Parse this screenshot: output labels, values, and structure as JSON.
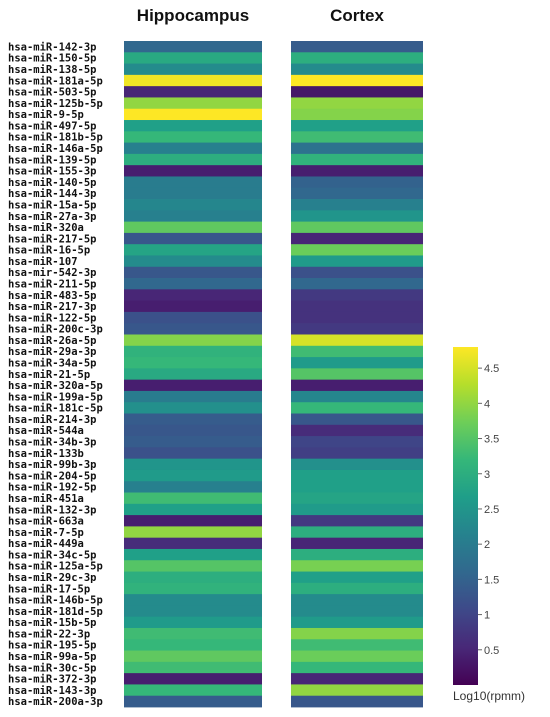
{
  "chart_data": {
    "type": "heatmap",
    "columns": [
      "Hippocampus",
      "Cortex"
    ],
    "rows": [
      "hsa-miR-142-3p",
      "hsa-miR-150-5p",
      "hsa-miR-138-5p",
      "hsa-miR-181a-5p",
      "hsa-miR-503-5p",
      "hsa-miR-125b-5p",
      "hsa-miR-9-5p",
      "hsa-miR-497-5p",
      "hsa-miR-181b-5p",
      "hsa-miR-146a-5p",
      "hsa-miR-139-5p",
      "hsa-miR-155-3p",
      "hsa-miR-140-5p",
      "hsa-miR-144-3p",
      "hsa-miR-15a-5p",
      "hsa-miR-27a-3p",
      "hsa-miR-320a",
      "hsa-miR-217-5p",
      "hsa-miR-16-5p",
      "hsa-miR-107",
      "hsa-mir-542-3p",
      "hsa-miR-211-5p",
      "hsa-miR-483-5p",
      "hsa-miR-217-3p",
      "hsa-miR-122-5p",
      "hsa-miR-200c-3p",
      "hsa-miR-26a-5p",
      "hsa-miR-29a-3p",
      "hsa-miR-34a-5p",
      "hsa-miR-21-5p",
      "hsa-miR-320a-5p",
      "hsa-miR-199a-5p",
      "hsa-miR-181c-5p",
      "hsa-miR-214-3p",
      "hsa-miR-544a",
      "hsa-miR-34b-3p",
      "hsa-miR-133b",
      "hsa-miR-99b-3p",
      "hsa-miR-204-5p",
      "hsa-miR-192-5p",
      "hsa-miR-451a",
      "hsa-miR-132-3p",
      "hsa-miR-663a",
      "hsa-miR-7-5p",
      "hsa-miR-449a",
      "hsa-miR-34c-5p",
      "hsa-miR-125a-5p",
      "hsa-miR-29c-3p",
      "hsa-miR-17-5p",
      "hsa-miR-146b-5p",
      "hsa-miR-181d-5p",
      "hsa-miR-15b-5p",
      "hsa-miR-22-3p",
      "hsa-miR-195-5p",
      "hsa-miR-99a-5p",
      "hsa-miR-30c-5p",
      "hsa-miR-372-3p",
      "hsa-miR-143-3p",
      "hsa-miR-200a-3p"
    ],
    "values": [
      [
        1.6,
        1.4
      ],
      [
        2.9,
        3.0
      ],
      [
        2.3,
        2.3
      ],
      [
        4.7,
        4.8
      ],
      [
        0.5,
        0.3
      ],
      [
        4.0,
        4.0
      ],
      [
        4.8,
        3.9
      ],
      [
        2.7,
        2.7
      ],
      [
        3.2,
        3.3
      ],
      [
        2.1,
        1.8
      ],
      [
        3.0,
        3.1
      ],
      [
        0.4,
        0.4
      ],
      [
        2.0,
        1.5
      ],
      [
        2.0,
        1.6
      ],
      [
        2.2,
        2.1
      ],
      [
        2.1,
        2.5
      ],
      [
        3.6,
        3.6
      ],
      [
        1.3,
        0.5
      ],
      [
        2.8,
        3.7
      ],
      [
        2.3,
        2.6
      ],
      [
        1.3,
        1.2
      ],
      [
        1.6,
        1.6
      ],
      [
        0.5,
        0.8
      ],
      [
        0.4,
        0.7
      ],
      [
        1.2,
        0.7
      ],
      [
        1.3,
        0.8
      ],
      [
        3.9,
        4.5
      ],
      [
        3.1,
        3.3
      ],
      [
        3.2,
        2.6
      ],
      [
        2.9,
        3.5
      ],
      [
        0.4,
        0.4
      ],
      [
        2.0,
        2.2
      ],
      [
        2.4,
        3.2
      ],
      [
        1.4,
        1.3
      ],
      [
        1.3,
        0.6
      ],
      [
        1.4,
        1.0
      ],
      [
        1.2,
        0.9
      ],
      [
        2.5,
        2.4
      ],
      [
        2.6,
        2.7
      ],
      [
        2.1,
        2.7
      ],
      [
        3.3,
        2.8
      ],
      [
        2.7,
        2.6
      ],
      [
        0.4,
        0.8
      ],
      [
        4.0,
        3.0
      ],
      [
        0.6,
        0.5
      ],
      [
        2.7,
        3.0
      ],
      [
        3.5,
        3.8
      ],
      [
        3.0,
        2.7
      ],
      [
        3.1,
        3.0
      ],
      [
        2.3,
        2.3
      ],
      [
        2.3,
        2.3
      ],
      [
        2.6,
        2.6
      ],
      [
        3.3,
        3.9
      ],
      [
        3.2,
        3.3
      ],
      [
        3.6,
        3.7
      ],
      [
        3.3,
        3.2
      ],
      [
        0.4,
        0.5
      ],
      [
        3.2,
        4.0
      ],
      [
        1.4,
        1.3
      ]
    ],
    "colorscale": [
      "#440154",
      "#482878",
      "#3e4989",
      "#31688e",
      "#26828e",
      "#1f9e89",
      "#35b779",
      "#6ece58",
      "#b5de2b",
      "#fde725"
    ],
    "zlim": [
      0,
      4.8
    ],
    "colorbar_ticks": [
      0.5,
      1,
      1.5,
      2,
      2.5,
      3,
      3.5,
      4,
      4.5
    ],
    "colorbar_title": "Log10(rpmm)"
  }
}
